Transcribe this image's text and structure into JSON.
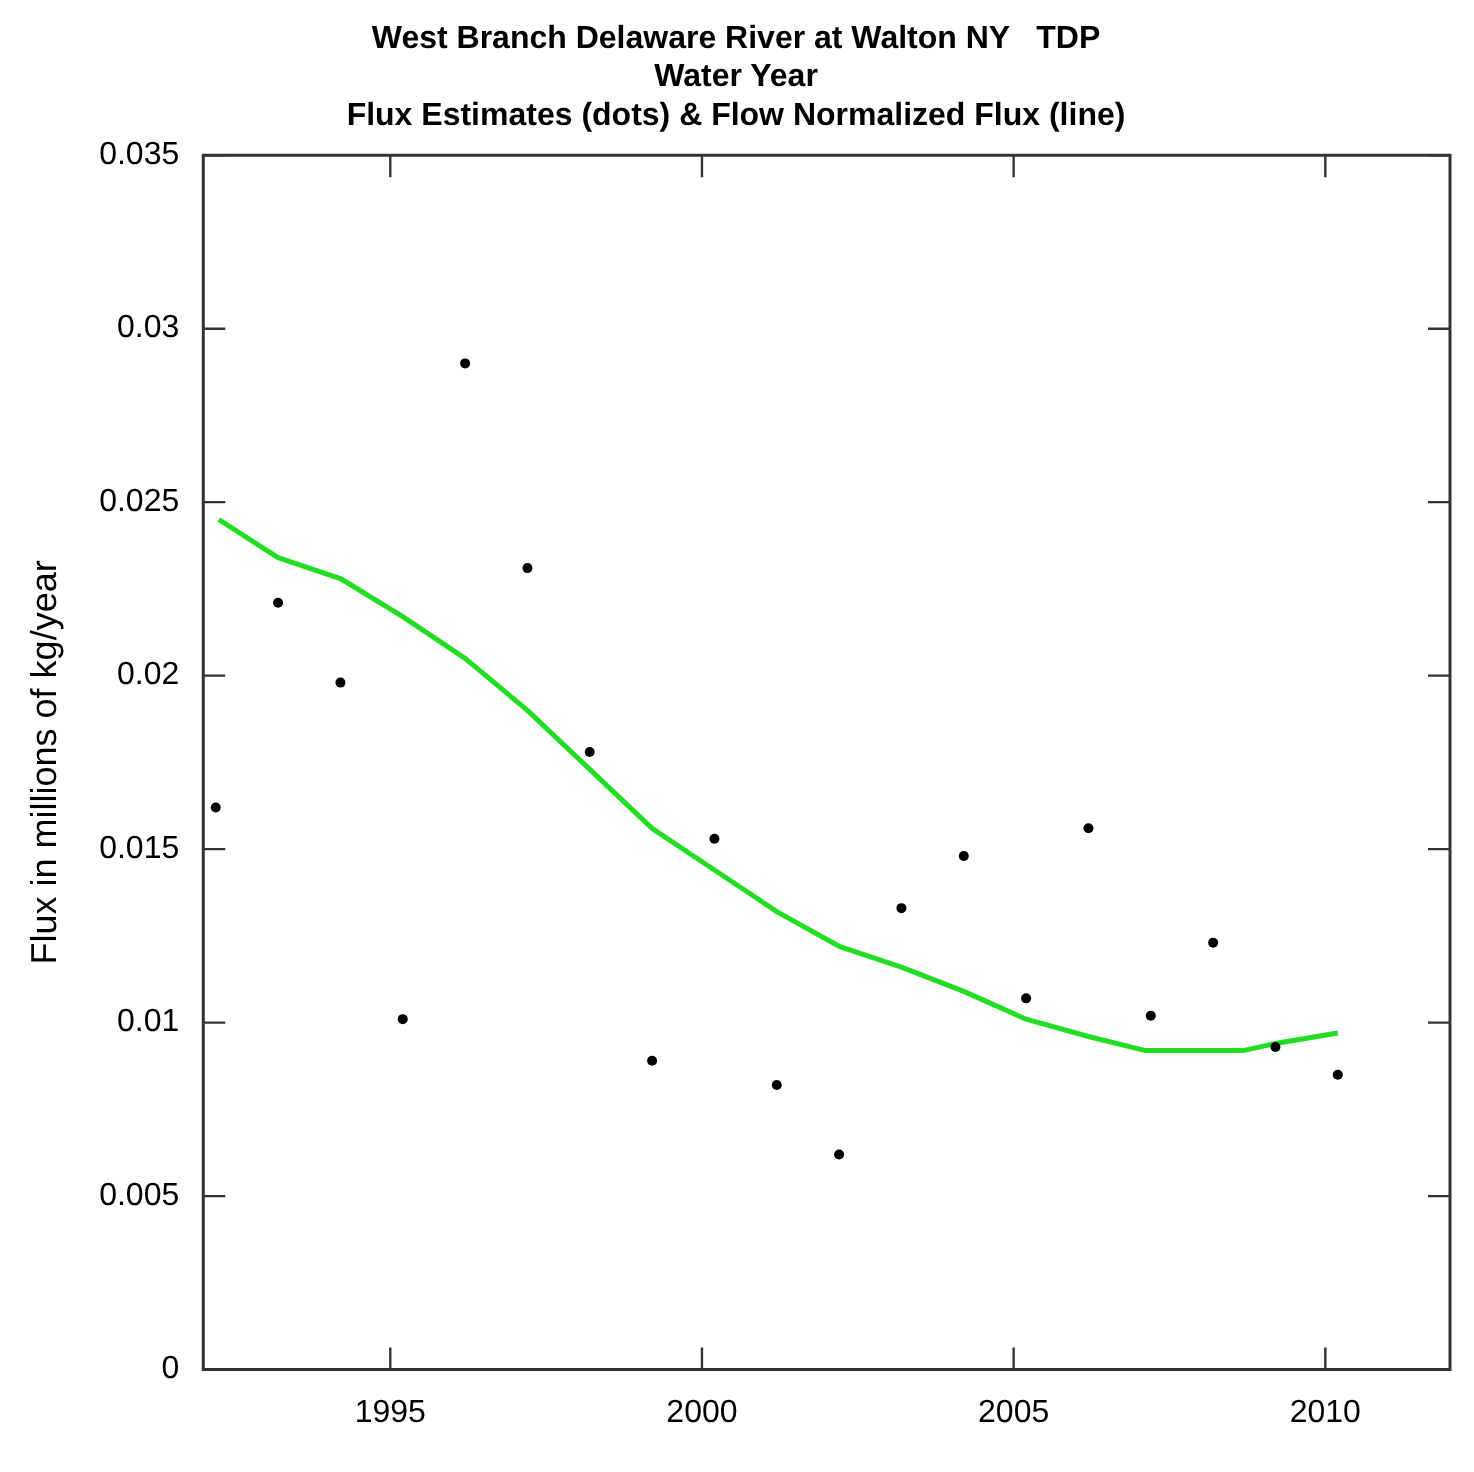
{
  "chart_data": {
    "type": "scatter",
    "title": "West Branch Delaware River at Walton NY   TDP\nWater Year\nFlux Estimates (dots) & Flow Normalized Flux (line)",
    "ylabel": "Flux in millions of kg/year",
    "xlim": [
      1992,
      2012
    ],
    "xticks": [
      1995,
      2000,
      2005,
      2010
    ],
    "ylim": [
      0,
      0.035
    ],
    "yticks": [
      0,
      0.005,
      0.01,
      0.015,
      0.02,
      0.025,
      0.03,
      0.035
    ],
    "grid": false,
    "legend": false,
    "series": [
      {
        "type": "scatter",
        "marker": "circle",
        "color": "#000000",
        "x": [
          1992.2,
          1993.2,
          1994.2,
          1995.2,
          1996.2,
          1997.2,
          1998.2,
          1999.2,
          2000.2,
          2001.2,
          2002.2,
          2003.2,
          2004.2,
          2005.2,
          2006.2,
          2007.2,
          2008.2,
          2009.2,
          2010.2
        ],
        "values": [
          0.0162,
          0.0221,
          0.0198,
          0.0101,
          0.029,
          0.0231,
          0.0178,
          0.0089,
          0.0153,
          0.0082,
          0.0062,
          0.0133,
          0.0148,
          0.0107,
          0.0156,
          0.0102,
          0.0123,
          0.0093,
          0.0085
        ]
      },
      {
        "type": "line",
        "marker": "none",
        "color": "#22dd22",
        "x": [
          1992.25,
          1993.2,
          1994.2,
          1995.2,
          1996.2,
          1997.2,
          1998.2,
          1999.2,
          2000.2,
          2001.2,
          2002.2,
          2003.2,
          2004.2,
          2005.2,
          2006.2,
          2007.1,
          2008.7,
          2009.2,
          2010.2
        ],
        "values": [
          0.0245,
          0.0234,
          0.0228,
          0.0217,
          0.0205,
          0.019,
          0.0173,
          0.0156,
          0.0144,
          0.0132,
          0.0122,
          0.0116,
          0.0109,
          0.0101,
          0.0096,
          0.0092,
          0.0092,
          0.0094,
          0.0097
        ]
      }
    ]
  }
}
